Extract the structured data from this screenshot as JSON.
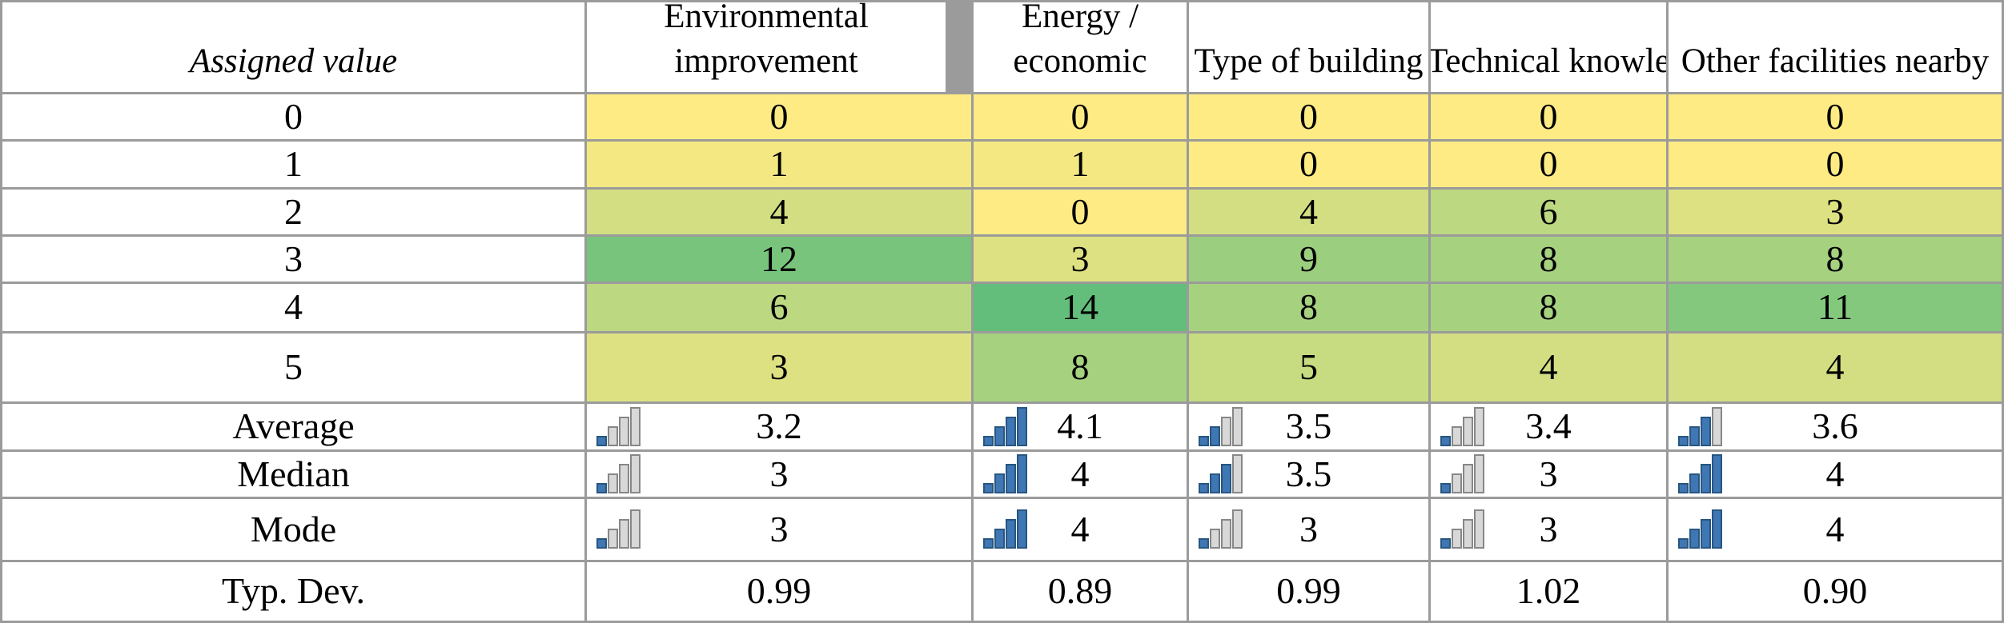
{
  "table": {
    "corner_label": "Assigned value",
    "columns": [
      {
        "label": "Environmental improvement"
      },
      {
        "label": "Energy / economic"
      },
      {
        "label": "Type of building"
      },
      {
        "label": "Technical knowle"
      },
      {
        "label": "Other facilities nearby"
      }
    ],
    "value_rows": [
      {
        "label": "0",
        "cells": [
          {
            "v": "0",
            "bg": "#FFEB84"
          },
          {
            "v": "0",
            "bg": "#FFEB84"
          },
          {
            "v": "0",
            "bg": "#FFEB84"
          },
          {
            "v": "0",
            "bg": "#FFEB84"
          },
          {
            "v": "0",
            "bg": "#FFEB84"
          }
        ]
      },
      {
        "label": "1",
        "cells": [
          {
            "v": "1",
            "bg": "#F4E883"
          },
          {
            "v": "1",
            "bg": "#F4E883"
          },
          {
            "v": "0",
            "bg": "#FFEB84"
          },
          {
            "v": "0",
            "bg": "#FFEB84"
          },
          {
            "v": "0",
            "bg": "#FFEB84"
          }
        ]
      },
      {
        "label": "2",
        "cells": [
          {
            "v": "4",
            "bg": "#D2DE81"
          },
          {
            "v": "0",
            "bg": "#FFEB84"
          },
          {
            "v": "4",
            "bg": "#D2DE81"
          },
          {
            "v": "6",
            "bg": "#BCD880"
          },
          {
            "v": "3",
            "bg": "#DEE182"
          }
        ]
      },
      {
        "label": "3",
        "cells": [
          {
            "v": "12",
            "bg": "#79C47C"
          },
          {
            "v": "3",
            "bg": "#DEE182"
          },
          {
            "v": "9",
            "bg": "#9BCE7E"
          },
          {
            "v": "8",
            "bg": "#A6D17F"
          },
          {
            "v": "8",
            "bg": "#A6D17F"
          }
        ]
      },
      {
        "label": "4",
        "cells": [
          {
            "v": "6",
            "bg": "#BCD880"
          },
          {
            "v": "14",
            "bg": "#63BE7B"
          },
          {
            "v": "8",
            "bg": "#A6D17F"
          },
          {
            "v": "8",
            "bg": "#A6D17F"
          },
          {
            "v": "11",
            "bg": "#84C87D"
          }
        ]
      },
      {
        "label": "5",
        "cells": [
          {
            "v": "3",
            "bg": "#DEE182"
          },
          {
            "v": "8",
            "bg": "#A6D17F"
          },
          {
            "v": "5",
            "bg": "#C7DB81"
          },
          {
            "v": "4",
            "bg": "#D2DE81"
          },
          {
            "v": "4",
            "bg": "#D2DE81"
          }
        ]
      }
    ],
    "stat_rows": [
      {
        "label": "Average",
        "cells": [
          {
            "v": "3.2",
            "bars": 1
          },
          {
            "v": "4.1",
            "bars": 4
          },
          {
            "v": "3.5",
            "bars": 2
          },
          {
            "v": "3.4",
            "bars": 1
          },
          {
            "v": "3.6",
            "bars": 3
          }
        ]
      },
      {
        "label": "Median",
        "cells": [
          {
            "v": "3",
            "bars": 1
          },
          {
            "v": "4",
            "bars": 4
          },
          {
            "v": "3.5",
            "bars": 3
          },
          {
            "v": "3",
            "bars": 1
          },
          {
            "v": "4",
            "bars": 4
          }
        ]
      },
      {
        "label": "Mode",
        "cells": [
          {
            "v": "3",
            "bars": 1
          },
          {
            "v": "4",
            "bars": 4
          },
          {
            "v": "3",
            "bars": 1
          },
          {
            "v": "3",
            "bars": 1
          },
          {
            "v": "4",
            "bars": 4
          }
        ]
      }
    ],
    "typdev_row": {
      "label": "Typ. Dev.",
      "values": [
        "0.99",
        "0.89",
        "0.99",
        "1.02",
        "0.90"
      ]
    },
    "colors": {
      "grid_line": "#9b9b9b",
      "scale_min_yellow": "#FFEB84",
      "scale_max_green": "#63BE7B",
      "icon_blue_fill": "#3F76B4",
      "icon_blue_stroke": "#28567F",
      "icon_gray_fill": "#D8D8D8",
      "icon_gray_stroke": "#878787"
    }
  }
}
